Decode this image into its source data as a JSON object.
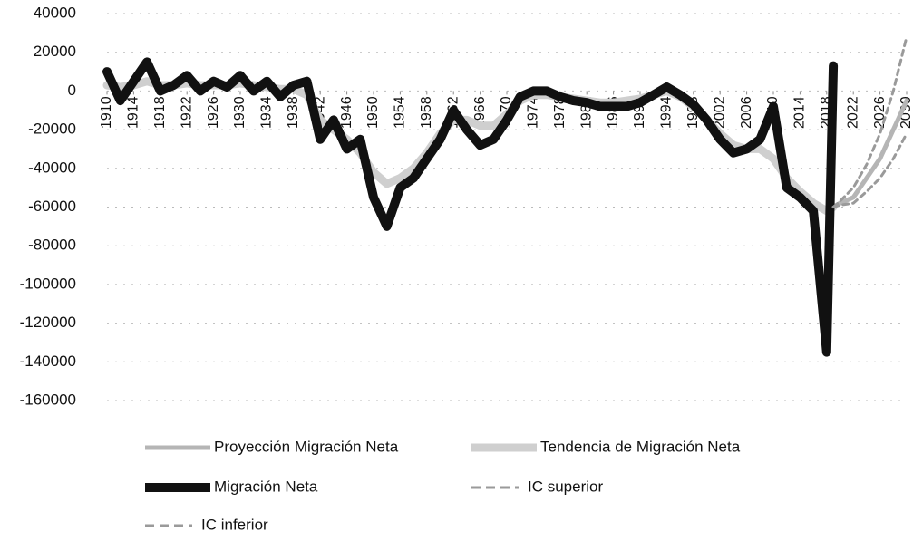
{
  "chart_data": {
    "type": "line",
    "x": [
      1910,
      1912,
      1914,
      1916,
      1918,
      1920,
      1922,
      1924,
      1926,
      1928,
      1930,
      1932,
      1934,
      1936,
      1938,
      1940,
      1942,
      1944,
      1946,
      1948,
      1950,
      1952,
      1954,
      1956,
      1958,
      1960,
      1962,
      1964,
      1966,
      1968,
      1970,
      1972,
      1974,
      1976,
      1978,
      1980,
      1982,
      1984,
      1986,
      1988,
      1990,
      1992,
      1994,
      1996,
      1998,
      2000,
      2002,
      2004,
      2006,
      2008,
      2010,
      2012,
      2014,
      2016,
      2018,
      2019,
      2020,
      2022,
      2024,
      2026,
      2028,
      2030
    ],
    "xlim": [
      1910,
      2030
    ],
    "xticks": [
      1910,
      1914,
      1918,
      1922,
      1926,
      1930,
      1934,
      1938,
      1942,
      1946,
      1950,
      1954,
      1958,
      1962,
      1966,
      1970,
      1974,
      1978,
      1982,
      1986,
      1990,
      1994,
      1998,
      2002,
      2006,
      2010,
      2014,
      2018,
      2022,
      2026,
      2030
    ],
    "ylim": [
      -160000,
      40000
    ],
    "yticks": [
      -160000,
      -140000,
      -120000,
      -100000,
      -80000,
      -60000,
      -40000,
      -20000,
      0,
      20000,
      40000
    ],
    "grid": true,
    "series": [
      {
        "name": "Proyección Migración Neta",
        "color": "#b5b5b5",
        "width": 5,
        "dashed": false,
        "values": [
          null,
          null,
          null,
          null,
          null,
          null,
          null,
          null,
          null,
          null,
          null,
          null,
          null,
          null,
          null,
          null,
          null,
          null,
          null,
          null,
          null,
          null,
          null,
          null,
          null,
          null,
          null,
          null,
          null,
          null,
          null,
          null,
          null,
          null,
          null,
          null,
          null,
          null,
          null,
          null,
          null,
          null,
          null,
          null,
          null,
          null,
          null,
          null,
          null,
          null,
          null,
          null,
          null,
          null,
          null,
          -60000,
          -58000,
          -55000,
          -45000,
          -35000,
          -20000,
          -5000
        ]
      },
      {
        "name": "Tendencia de Migración Neta",
        "color": "#cfcfcf",
        "width": 9,
        "dashed": false,
        "values": [
          3000,
          2000,
          3000,
          5000,
          3000,
          3000,
          4000,
          3000,
          3000,
          3000,
          4000,
          3000,
          2000,
          1000,
          1000,
          -2000,
          -15000,
          -20000,
          -25000,
          -32000,
          -42000,
          -48000,
          -45000,
          -40000,
          -32000,
          -22000,
          -15000,
          -15000,
          -18000,
          -18000,
          -12000,
          -5000,
          -2000,
          -2000,
          -3000,
          -4000,
          -5000,
          -6000,
          -6000,
          -5000,
          -4000,
          -2000,
          0,
          -3000,
          -8000,
          -15000,
          -22000,
          -28000,
          -30000,
          -30000,
          -35000,
          -45000,
          -52000,
          -58000,
          -62000,
          -60000,
          null,
          null,
          null,
          null,
          null,
          null
        ]
      },
      {
        "name": "Migración Neta",
        "color": "#111111",
        "width": 10,
        "dashed": false,
        "values": [
          10000,
          -5000,
          5000,
          15000,
          0,
          3000,
          8000,
          0,
          5000,
          2000,
          8000,
          0,
          5000,
          -3000,
          3000,
          5000,
          -25000,
          -15000,
          -30000,
          -25000,
          -55000,
          -70000,
          -50000,
          -45000,
          -35000,
          -25000,
          -10000,
          -20000,
          -28000,
          -25000,
          -15000,
          -3000,
          0,
          0,
          -3000,
          -5000,
          -6000,
          -8000,
          -8000,
          -8000,
          -6000,
          -2000,
          2000,
          -2000,
          -7000,
          -15000,
          -25000,
          -32000,
          -30000,
          -25000,
          -8000,
          -50000,
          -55000,
          -62000,
          -135000,
          13000,
          null,
          null,
          null,
          null,
          null,
          null
        ]
      },
      {
        "name": "IC superior",
        "color": "#9a9a9a",
        "width": 3,
        "dashed": true,
        "values": [
          null,
          null,
          null,
          null,
          null,
          null,
          null,
          null,
          null,
          null,
          null,
          null,
          null,
          null,
          null,
          null,
          null,
          null,
          null,
          null,
          null,
          null,
          null,
          null,
          null,
          null,
          null,
          null,
          null,
          null,
          null,
          null,
          null,
          null,
          null,
          null,
          null,
          null,
          null,
          null,
          null,
          null,
          null,
          null,
          null,
          null,
          null,
          null,
          null,
          null,
          null,
          null,
          null,
          null,
          null,
          -60000,
          -57000,
          -50000,
          -38000,
          -22000,
          0,
          28000
        ]
      },
      {
        "name": "IC inferior",
        "color": "#9a9a9a",
        "width": 3,
        "dashed": true,
        "values": [
          null,
          null,
          null,
          null,
          null,
          null,
          null,
          null,
          null,
          null,
          null,
          null,
          null,
          null,
          null,
          null,
          null,
          null,
          null,
          null,
          null,
          null,
          null,
          null,
          null,
          null,
          null,
          null,
          null,
          null,
          null,
          null,
          null,
          null,
          null,
          null,
          null,
          null,
          null,
          null,
          null,
          null,
          null,
          null,
          null,
          null,
          null,
          null,
          null,
          null,
          null,
          null,
          null,
          null,
          null,
          -60000,
          -59000,
          -58000,
          -52000,
          -45000,
          -35000,
          -22000
        ]
      }
    ]
  }
}
